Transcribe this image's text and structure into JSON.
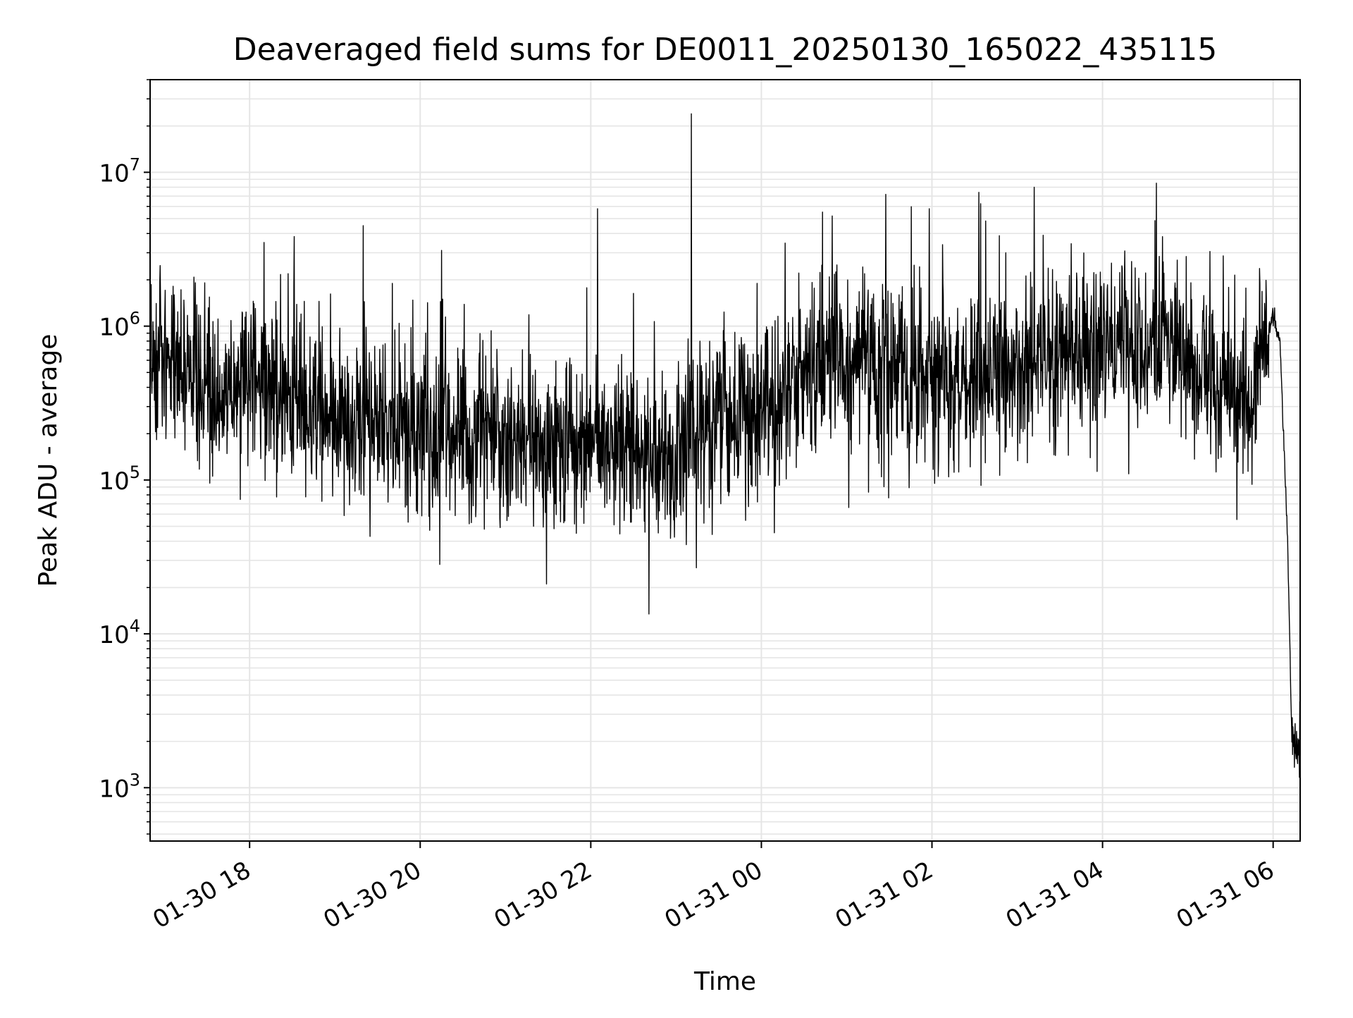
{
  "chart_data": {
    "type": "line",
    "title": "Deaveraged field sums for DE0011_20250130_165022_435115",
    "xlabel": "Time",
    "ylabel": "Peak ADU - average",
    "yscale": "log",
    "ylim": [
      450,
      40000000
    ],
    "xlim": [
      "01-30 16:50",
      "01-31 06:19"
    ],
    "x_ticks": [
      "01-30 18",
      "01-30 20",
      "01-30 22",
      "01-31 00",
      "01-31 02",
      "01-31 04",
      "01-31 06"
    ],
    "x_tick_hours": [
      18,
      20,
      22,
      24,
      26,
      28,
      30
    ],
    "y_ticks": [
      {
        "value": 1000,
        "base": "10",
        "exp": "3"
      },
      {
        "value": 10000,
        "base": "10",
        "exp": "4"
      },
      {
        "value": 100000,
        "base": "10",
        "exp": "5"
      },
      {
        "value": 1000000,
        "base": "10",
        "exp": "6"
      },
      {
        "value": 10000000,
        "base": "10",
        "exp": "7"
      }
    ],
    "grid": true,
    "line_color": "#000000",
    "grid_color": "#e5e5e5",
    "series_summary": [
      {
        "time": "01-30 16:50",
        "hours": 16.833,
        "approx_median": 800000
      },
      {
        "time": "01-30 17:30",
        "hours": 17.5,
        "approx_median": 350000
      },
      {
        "time": "01-30 18:00",
        "hours": 18.0,
        "approx_median": 450000
      },
      {
        "time": "01-30 19:00",
        "hours": 19.0,
        "approx_median": 250000
      },
      {
        "time": "01-30 20:00",
        "hours": 20.0,
        "approx_median": 220000
      },
      {
        "time": "01-30 21:00",
        "hours": 21.0,
        "approx_median": 160000
      },
      {
        "time": "01-30 22:00",
        "hours": 22.0,
        "approx_median": 180000
      },
      {
        "time": "01-30 23:00",
        "hours": 23.0,
        "approx_median": 150000
      },
      {
        "time": "01-31 00:00",
        "hours": 24.0,
        "approx_median": 300000
      },
      {
        "time": "01-31 00:45",
        "hours": 24.75,
        "approx_median": 550000
      },
      {
        "time": "01-31 01:00",
        "hours": 25.0,
        "approx_median": 600000
      },
      {
        "time": "01-31 02:00",
        "hours": 26.0,
        "approx_median": 400000
      },
      {
        "time": "01-31 03:00",
        "hours": 27.0,
        "approx_median": 550000
      },
      {
        "time": "01-31 04:00",
        "hours": 28.0,
        "approx_median": 650000
      },
      {
        "time": "01-31 04:45",
        "hours": 28.75,
        "approx_median": 900000
      },
      {
        "time": "01-31 05:00",
        "hours": 29.0,
        "approx_median": 500000
      },
      {
        "time": "01-31 05:45",
        "hours": 29.75,
        "approx_median": 350000
      },
      {
        "time": "01-31 06:00",
        "hours": 30.0,
        "approx_median": 1200000
      },
      {
        "time": "01-31 06:05",
        "hours": 30.08,
        "approx_median": 800000
      },
      {
        "time": "01-31 06:10",
        "hours": 30.17,
        "approx_median": 40000
      },
      {
        "time": "01-31 06:13",
        "hours": 30.22,
        "approx_median": 2000
      },
      {
        "time": "01-31 06:19",
        "hours": 30.31,
        "approx_median": 1500
      }
    ],
    "notable_spikes": [
      {
        "time": "01-30 23:11",
        "hours": 23.18,
        "value": 24000000
      },
      {
        "time": "01-31 04:38",
        "hours": 28.63,
        "value": 8500000
      },
      {
        "time": "01-31 03:12",
        "hours": 27.2,
        "value": 8000000
      },
      {
        "time": "01-30 22:05",
        "hours": 22.08,
        "value": 5800000
      },
      {
        "time": "01-31 01:58",
        "hours": 25.97,
        "value": 5800000
      },
      {
        "time": "01-30 19:20",
        "hours": 19.33,
        "value": 4500000
      },
      {
        "time": "01-30 18:10",
        "hours": 18.17,
        "value": 3500000
      },
      {
        "time": "01-31 00:50",
        "hours": 24.83,
        "value": 5200000
      }
    ],
    "notable_dips": [
      {
        "time": "01-30 23:07",
        "hours": 23.12,
        "value": 38000
      },
      {
        "time": "01-30 21:50",
        "hours": 21.83,
        "value": 45000
      },
      {
        "time": "01-30 21:20",
        "hours": 21.33,
        "value": 50000
      }
    ]
  }
}
